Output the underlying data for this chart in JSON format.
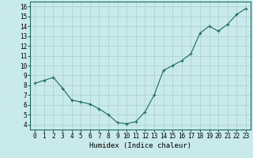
{
  "title": "",
  "xlabel": "Humidex (Indice chaleur)",
  "ylabel": "",
  "background_color": "#c8eaea",
  "grid_color": "#aacccc",
  "line_color": "#1a6b5a",
  "marker_color": "#1a6b5a",
  "x": [
    0,
    1,
    2,
    3,
    4,
    5,
    6,
    7,
    8,
    9,
    10,
    11,
    12,
    13,
    14,
    15,
    16,
    17,
    18,
    19,
    20,
    21,
    22,
    23
  ],
  "y": [
    8.2,
    8.5,
    8.8,
    7.7,
    6.5,
    6.3,
    6.1,
    5.6,
    5.0,
    4.2,
    4.1,
    4.3,
    5.3,
    7.0,
    9.5,
    10.0,
    10.5,
    11.2,
    13.3,
    14.0,
    13.5,
    14.2,
    15.2,
    15.8
  ],
  "ylim": [
    3.5,
    16.5
  ],
  "xlim": [
    -0.5,
    23.5
  ],
  "yticks": [
    4,
    5,
    6,
    7,
    8,
    9,
    10,
    11,
    12,
    13,
    14,
    15,
    16
  ],
  "xticks": [
    0,
    1,
    2,
    3,
    4,
    5,
    6,
    7,
    8,
    9,
    10,
    11,
    12,
    13,
    14,
    15,
    16,
    17,
    18,
    19,
    20,
    21,
    22,
    23
  ]
}
